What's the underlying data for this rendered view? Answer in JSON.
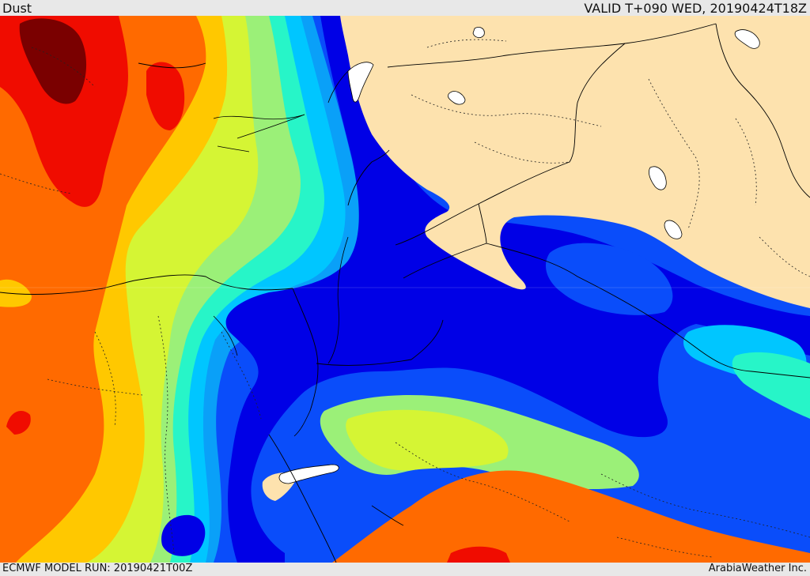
{
  "header": {
    "title": "Dust",
    "valid": "VALID T+090 WED, 20190424T18Z"
  },
  "footer": {
    "model_run": "ECMWF MODEL RUN: 20190421T00Z",
    "credit": "ArabiaWeather Inc."
  },
  "palette": {
    "land": "#fde2ae",
    "blue_dark": "#0000e6",
    "blue": "#0a4dfa",
    "blue_mid": "#0aa0f8",
    "cyan": "#00c6ff",
    "aqua": "#27f5c8",
    "green": "#9bf078",
    "yellow_green": "#d5f534",
    "yellow": "#ffc800",
    "orange": "#ff6a00",
    "red": "#f00c00",
    "dark_red": "#7a0000"
  }
}
